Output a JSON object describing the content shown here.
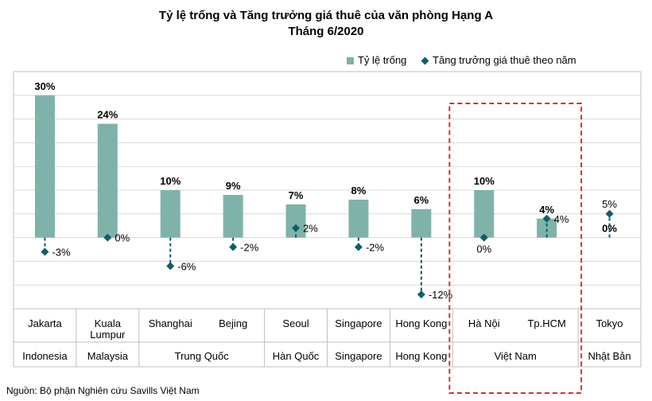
{
  "chart_data": {
    "type": "bar",
    "title": "Tỷ lệ trống và Tăng trưởng giá thuê của văn phòng Hạng A",
    "subtitle": "Tháng 6/2020",
    "categories": [
      "Jakarta",
      "Kuala Lumpur",
      "Shanghai",
      "Bejing",
      "Seoul",
      "Singapore",
      "Hong Kong",
      "Hà Nội",
      "Tp.HCM",
      "Tokyo"
    ],
    "category_lines": [
      [
        "Jakarta"
      ],
      [
        "Kuala",
        "Lumpur"
      ],
      [
        "Shanghai"
      ],
      [
        "Bejing"
      ],
      [
        "Seoul"
      ],
      [
        "Singapore"
      ],
      [
        "Hong Kong"
      ],
      [
        "Hà Nội"
      ],
      [
        "Tp.HCM"
      ],
      [
        "Tokyo"
      ]
    ],
    "groups": [
      {
        "label": "Indonesia",
        "from": 0,
        "to": 0
      },
      {
        "label": "Malaysia",
        "from": 1,
        "to": 1
      },
      {
        "label": "Trung Quốc",
        "from": 2,
        "to": 3
      },
      {
        "label": "Hàn Quốc",
        "from": 4,
        "to": 4
      },
      {
        "label": "Singapore",
        "from": 5,
        "to": 5
      },
      {
        "label": "Hong Kong",
        "from": 6,
        "to": 6
      },
      {
        "label": "Việt Nam",
        "from": 7,
        "to": 8
      },
      {
        "label": "Nhật Bản",
        "from": 9,
        "to": 9
      }
    ],
    "series": [
      {
        "name": "Tỷ lệ trống",
        "kind": "bar",
        "color": "#7fb3a9",
        "values": [
          30,
          24,
          10,
          9,
          7,
          8,
          6,
          10,
          4,
          0
        ],
        "labels": [
          "30%",
          "24%",
          "10%",
          "9%",
          "7%",
          "8%",
          "6%",
          "10%",
          "4%",
          "0%"
        ]
      },
      {
        "name": "Tăng trưởng giá thuê theo năm",
        "kind": "point",
        "color": "#0f5f66",
        "values": [
          -3,
          0,
          -6,
          -2,
          2,
          -2,
          -12,
          0,
          4,
          5
        ],
        "labels": [
          "-3%",
          "0%",
          "-6%",
          "-2%",
          "2%",
          "-2%",
          "-12%",
          "0%",
          "4%",
          "5%"
        ]
      }
    ],
    "ylim": [
      -15,
      35
    ],
    "grid": true,
    "legend": "top-right",
    "highlight": {
      "from": 7,
      "to": 8,
      "color": "#d9302c"
    }
  },
  "source": "Nguồn: Bộ phận Nghiên cứu Savills Việt Nam"
}
